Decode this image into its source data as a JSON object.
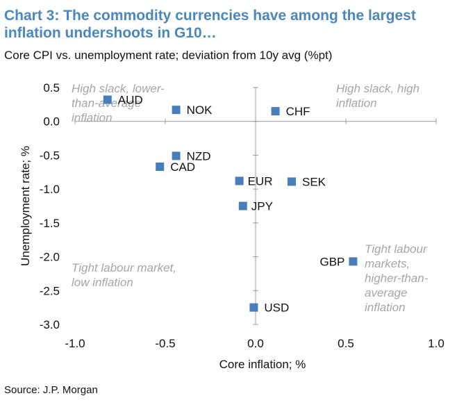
{
  "title": "Chart 3: The commodity currencies have among the largest inflation undershoots in G10…",
  "subtitle": "Core CPI vs. unemployment rate; deviation from 10y avg (%pt)",
  "source": "Source: J.P. Morgan",
  "chart_data": {
    "type": "scatter",
    "xlabel": "Core inflation; %",
    "ylabel": "Unemployment rate; %",
    "xlim": [
      -1.0,
      1.0
    ],
    "ylim": [
      -3.0,
      0.5
    ],
    "xticks": [
      "-1.0",
      "-0.5",
      "0.0",
      "0.5",
      "1.0"
    ],
    "yticks": [
      "0.5",
      "0.0",
      "-0.5",
      "-1.0",
      "-1.5",
      "-2.0",
      "-2.5",
      "-3.0"
    ],
    "marker_color": "#4a7ebb",
    "points": [
      {
        "label": "AUD",
        "x": -0.82,
        "y": 0.32
      },
      {
        "label": "NOK",
        "x": -0.44,
        "y": 0.17
      },
      {
        "label": "CHF",
        "x": 0.11,
        "y": 0.15
      },
      {
        "label": "NZD",
        "x": -0.44,
        "y": -0.51
      },
      {
        "label": "CAD",
        "x": -0.53,
        "y": -0.67
      },
      {
        "label": "EUR",
        "x": -0.09,
        "y": -0.88
      },
      {
        "label": "SEK",
        "x": 0.2,
        "y": -0.89
      },
      {
        "label": "JPY",
        "x": -0.07,
        "y": -1.25
      },
      {
        "label": "GBP",
        "x": 0.54,
        "y": -2.07
      },
      {
        "label": "USD",
        "x": -0.01,
        "y": -2.75
      }
    ],
    "annotations": [
      {
        "lines": [
          "High slack, lower-",
          "than-average",
          "inflation"
        ],
        "position": "top-left"
      },
      {
        "lines": [
          "High slack, high",
          "inflation"
        ],
        "position": "top-right"
      },
      {
        "lines": [
          "Tight labour market,",
          "low inflation"
        ],
        "position": "bottom-left"
      },
      {
        "lines": [
          "Tight labour",
          "markets,",
          "higher-than-",
          "average",
          "inflation"
        ],
        "position": "bottom-right"
      }
    ]
  }
}
